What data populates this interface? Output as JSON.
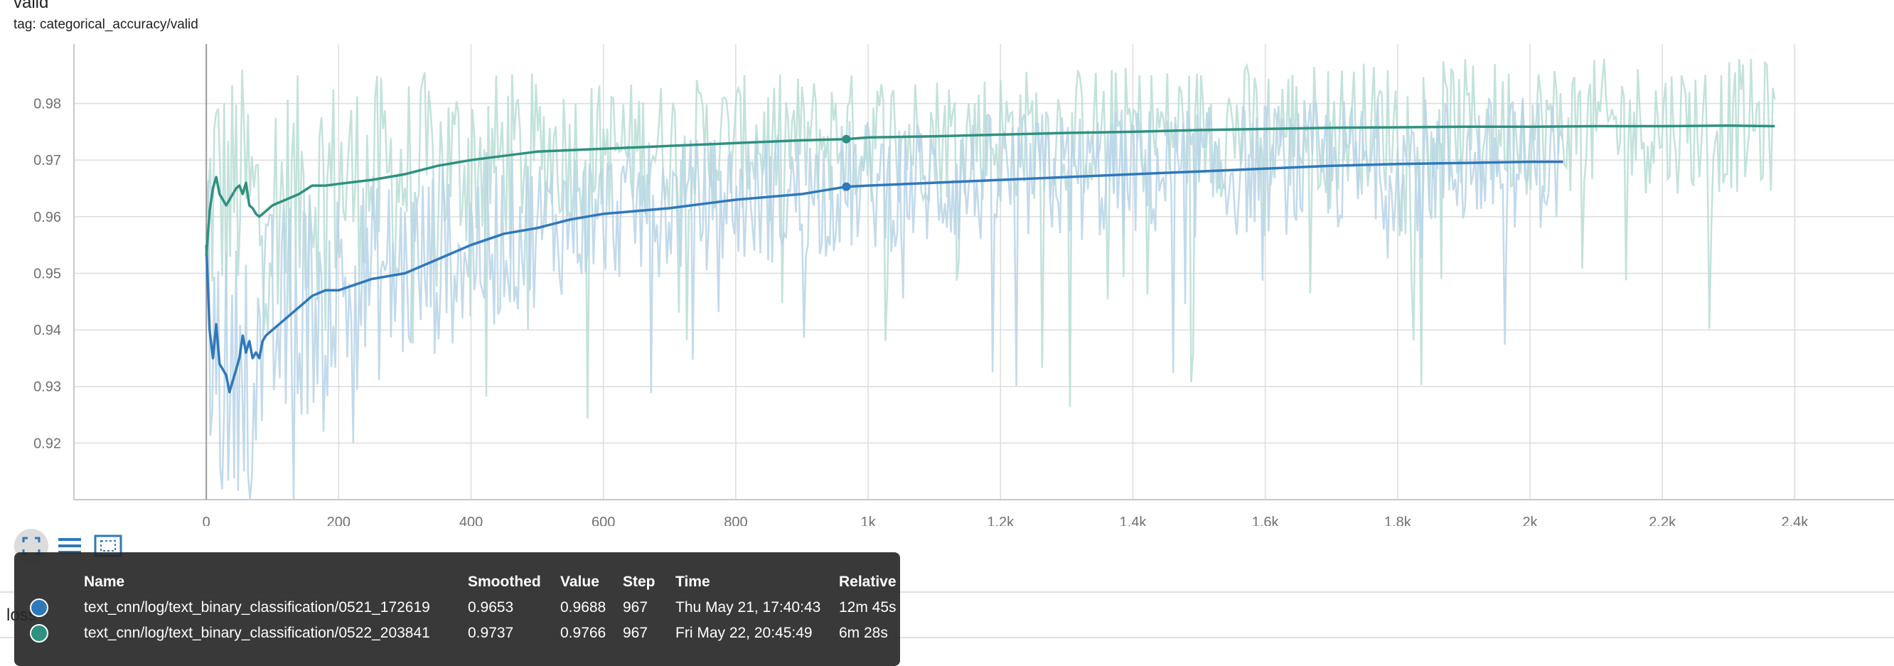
{
  "card": {
    "title": "valid",
    "tag": "tag: categorical_accuracy/valid"
  },
  "toolbar": {
    "icons": [
      "fullscreen-icon",
      "data-lines-icon",
      "fit-domain-icon"
    ]
  },
  "lower_card": {
    "title": "loss"
  },
  "colors": {
    "run1": "#2f78ba",
    "run2": "#2e9180",
    "run1_raw": "#b7d3e8",
    "run2_raw": "#b9ddd6",
    "grid": "#dddddd",
    "tooltip_bg": "#282828"
  },
  "chart_data": {
    "type": "line",
    "xlabel": "",
    "ylabel": "",
    "xlim": [
      -200,
      2550
    ],
    "ylim": [
      0.91,
      0.9905
    ],
    "x_ticks": [
      0,
      200,
      400,
      600,
      800,
      1000,
      1200,
      1400,
      1600,
      1800,
      2000,
      2200,
      2400
    ],
    "x_tick_labels": [
      "0",
      "200",
      "400",
      "600",
      "800",
      "1k",
      "1.2k",
      "1.4k",
      "1.6k",
      "1.8k",
      "2k",
      "2.2k",
      "2.4k"
    ],
    "y_ticks": [
      0.92,
      0.93,
      0.94,
      0.95,
      0.96,
      0.97,
      0.98
    ],
    "y_tick_labels": [
      "0.92",
      "0.93",
      "0.94",
      "0.95",
      "0.96",
      "0.97",
      "0.98"
    ],
    "grid": true,
    "smoothing_weight": 0.6,
    "highlight_step": 967,
    "series": [
      {
        "name": "text_cnn/log/text_binary_classification/0521_172619",
        "color": "#2f78ba",
        "raw_color": "#b7d3e8",
        "smoothed": {
          "x": [
            0,
            5,
            10,
            15,
            20,
            25,
            30,
            35,
            40,
            45,
            50,
            55,
            60,
            65,
            70,
            75,
            80,
            85,
            90,
            100,
            110,
            120,
            140,
            160,
            180,
            200,
            250,
            300,
            350,
            400,
            450,
            500,
            550,
            600,
            700,
            800,
            900,
            967,
            1000,
            1100,
            1200,
            1300,
            1400,
            1500,
            1600,
            1700,
            1800,
            1900,
            2000,
            2050
          ],
          "y": [
            0.955,
            0.94,
            0.935,
            0.941,
            0.934,
            0.933,
            0.932,
            0.929,
            0.931,
            0.933,
            0.935,
            0.939,
            0.936,
            0.938,
            0.935,
            0.936,
            0.935,
            0.938,
            0.939,
            0.94,
            0.941,
            0.942,
            0.944,
            0.946,
            0.947,
            0.947,
            0.949,
            0.95,
            0.9525,
            0.955,
            0.957,
            0.958,
            0.9595,
            0.9605,
            0.9615,
            0.963,
            0.964,
            0.9653,
            0.9655,
            0.966,
            0.9665,
            0.967,
            0.9675,
            0.968,
            0.9685,
            0.969,
            0.9693,
            0.9695,
            0.9697,
            0.9697
          ]
        },
        "tooltip": {
          "smoothed": "0.9653",
          "value": "0.9688",
          "step": "967",
          "time": "Thu May 21, 17:40:43",
          "relative": "12m 45s"
        }
      },
      {
        "name": "text_cnn/log/text_binary_classification/0522_203841",
        "color": "#2e9180",
        "raw_color": "#b9ddd6",
        "smoothed": {
          "x": [
            0,
            5,
            10,
            15,
            20,
            25,
            30,
            35,
            40,
            45,
            50,
            55,
            60,
            65,
            70,
            75,
            80,
            90,
            100,
            120,
            140,
            160,
            180,
            200,
            250,
            300,
            350,
            400,
            500,
            600,
            700,
            800,
            900,
            967,
            1000,
            1100,
            1200,
            1300,
            1400,
            1500,
            1600,
            1700,
            1800,
            1900,
            2000,
            2100,
            2200,
            2300,
            2370
          ],
          "y": [
            0.953,
            0.961,
            0.965,
            0.967,
            0.964,
            0.963,
            0.962,
            0.963,
            0.964,
            0.965,
            0.9655,
            0.964,
            0.966,
            0.962,
            0.9615,
            0.9605,
            0.96,
            0.961,
            0.962,
            0.963,
            0.964,
            0.9655,
            0.9655,
            0.9658,
            0.9665,
            0.9675,
            0.969,
            0.97,
            0.9715,
            0.972,
            0.9725,
            0.973,
            0.9735,
            0.9737,
            0.974,
            0.9742,
            0.9745,
            0.9748,
            0.975,
            0.9753,
            0.9755,
            0.9757,
            0.9758,
            0.9759,
            0.9759,
            0.976,
            0.976,
            0.9761,
            0.976
          ]
        },
        "tooltip": {
          "smoothed": "0.9737",
          "value": "0.9766",
          "step": "967",
          "time": "Fri May 22, 20:45:49",
          "relative": "6m 28s"
        }
      }
    ]
  },
  "tooltip_headers": {
    "name": "Name",
    "smoothed": "Smoothed",
    "value": "Value",
    "step": "Step",
    "time": "Time",
    "relative": "Relative"
  }
}
